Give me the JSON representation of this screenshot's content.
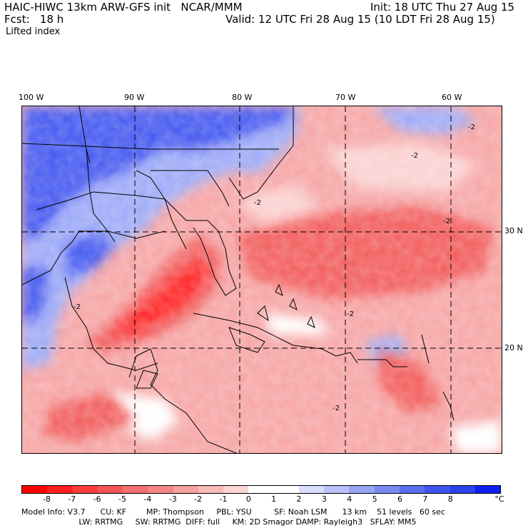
{
  "header": {
    "model_title": "HAIC-HIWC 13km ARW-GFS init   NCAR/MMM",
    "init": "Init: 18 UTC Thu 27 Aug 15",
    "fcst_label": "Fcst:   18 h",
    "valid": "Valid: 12 UTC Fri 28 Aug 15 (10 LDT Fri 28 Aug 15)",
    "field": "Lifted index"
  },
  "map": {
    "lon_labels": [
      "100 W",
      "90 W",
      "80 W",
      "70 W",
      "60 W"
    ],
    "lat_labels": [
      "30 N",
      "20 N"
    ],
    "contour_label": "-2",
    "colors": {
      "ocean_base": "#f6a3a3",
      "strong_red": "#ff1f1f",
      "mid_red": "#f25a5a",
      "light_pink": "#fbd0d0",
      "land_blue": "#3f55f0",
      "light_blue": "#9ba9f7",
      "white": "#ffffff"
    }
  },
  "colorbar": {
    "labels": [
      "-8",
      "-7",
      "-6",
      "-5",
      "-4",
      "-3",
      "-2",
      "-1",
      "0",
      "1",
      "2",
      "3",
      "4",
      "5",
      "6",
      "7",
      "8"
    ],
    "unit": "°C",
    "colors": [
      "#ff0000",
      "#ff1f1f",
      "#ff3c3c",
      "#f75555",
      "#f56f6f",
      "#f58787",
      "#f7a1a1",
      "#f9baba",
      "#fcd5d5",
      "#ffffff",
      "#ffffff",
      "#d8defb",
      "#b9c3f9",
      "#98a6f6",
      "#7a8af3",
      "#5a6ef2",
      "#3d54f1",
      "#2a42ee",
      "#0f1ff0"
    ]
  },
  "info": {
    "line1": "Model Info: V3.7      CU: KF        MP: Thompson     PBL: YSU         SF: Noah LSM      13 km    51 levels   60 sec",
    "line2": "                       LW: RRTMG     SW: RRTMG  DIFF: full     KM: 2D Smagor DAMP: Rayleigh3   SFLAY: MM5"
  }
}
